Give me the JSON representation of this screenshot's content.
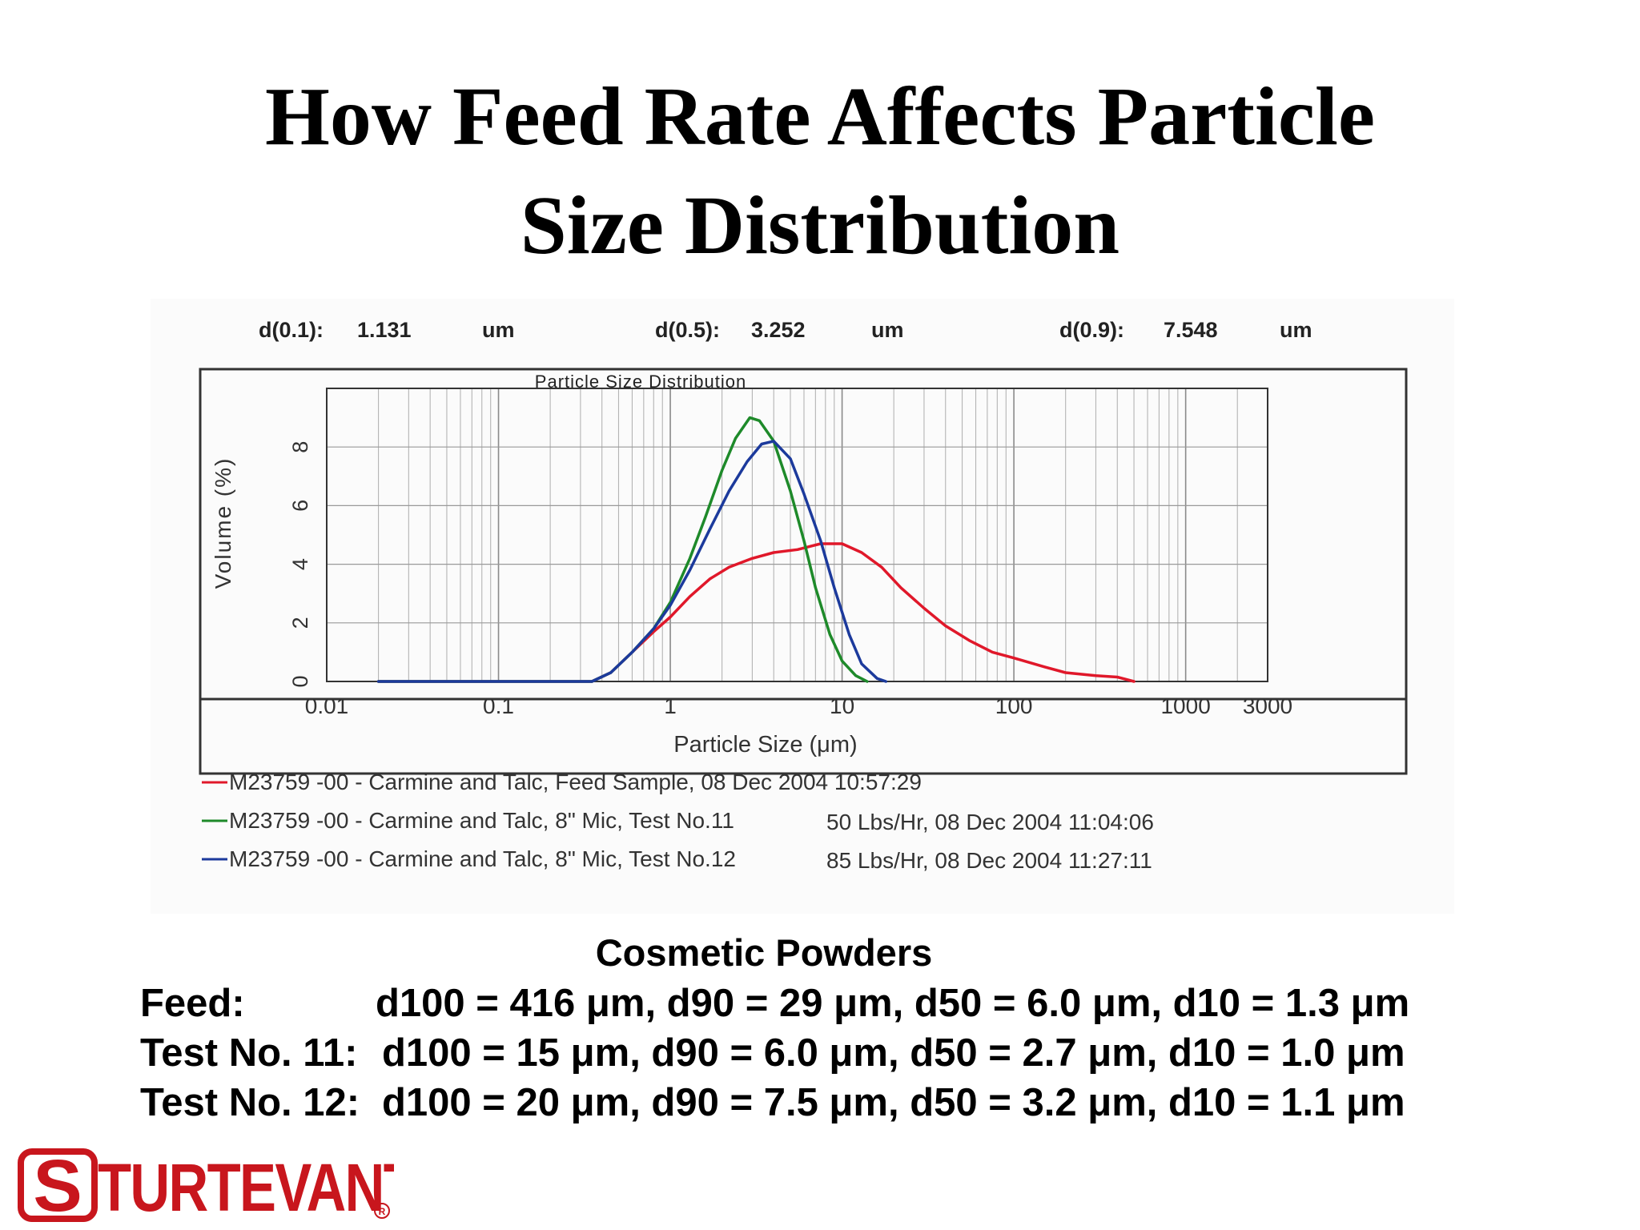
{
  "title_line1": "How Feed Rate Affects Particle",
  "title_line2": "Size Distribution",
  "chart_data": {
    "type": "line",
    "title": "Particle Size Distribution",
    "xlabel": "Particle Size (μm)",
    "ylabel": "Volume (%)",
    "x_scale": "log",
    "xlim": [
      0.01,
      3000
    ],
    "ylim": [
      0,
      10
    ],
    "x_ticks": [
      "0.01",
      "0.1",
      "1",
      "10",
      "100",
      "1000",
      "3000"
    ],
    "y_ticks": [
      "0",
      "2",
      "4",
      "6",
      "8"
    ],
    "grid": true,
    "stats": [
      {
        "label": "d(0.1):",
        "value": "1.131",
        "unit": "um"
      },
      {
        "label": "d(0.5):",
        "value": "3.252",
        "unit": "um"
      },
      {
        "label": "d(0.9):",
        "value": "7.548",
        "unit": "um"
      }
    ],
    "legend_position": "bottom",
    "series": [
      {
        "name": "M23759 -00 - Carmine and Talc, Feed Sample, 08 Dec 2004 10:57:29",
        "color": "#e0182a",
        "points": [
          [
            0.02,
            0
          ],
          [
            0.35,
            0
          ],
          [
            0.45,
            0.3
          ],
          [
            0.6,
            1.0
          ],
          [
            0.8,
            1.7
          ],
          [
            1.0,
            2.2
          ],
          [
            1.3,
            2.9
          ],
          [
            1.7,
            3.5
          ],
          [
            2.2,
            3.9
          ],
          [
            3.0,
            4.2
          ],
          [
            4.0,
            4.4
          ],
          [
            5.5,
            4.5
          ],
          [
            7.5,
            4.7
          ],
          [
            10,
            4.7
          ],
          [
            13,
            4.4
          ],
          [
            17,
            3.9
          ],
          [
            22,
            3.2
          ],
          [
            30,
            2.5
          ],
          [
            40,
            1.9
          ],
          [
            55,
            1.4
          ],
          [
            75,
            1.0
          ],
          [
            100,
            0.8
          ],
          [
            150,
            0.5
          ],
          [
            200,
            0.3
          ],
          [
            300,
            0.2
          ],
          [
            400,
            0.15
          ],
          [
            500,
            0
          ]
        ]
      },
      {
        "name": "M23759 -00 - Carmine and Talc, 8\" Mic, Test No.11",
        "extra": "50 Lbs/Hr, 08 Dec 2004 11:04:06",
        "color": "#1e8a2a",
        "points": [
          [
            0.02,
            0
          ],
          [
            0.35,
            0
          ],
          [
            0.45,
            0.3
          ],
          [
            0.6,
            1.0
          ],
          [
            0.8,
            1.8
          ],
          [
            1.0,
            2.7
          ],
          [
            1.3,
            4.2
          ],
          [
            1.6,
            5.6
          ],
          [
            2.0,
            7.2
          ],
          [
            2.4,
            8.3
          ],
          [
            2.9,
            9.0
          ],
          [
            3.3,
            8.9
          ],
          [
            4.0,
            8.2
          ],
          [
            5.0,
            6.5
          ],
          [
            6.0,
            4.8
          ],
          [
            7.0,
            3.2
          ],
          [
            8.5,
            1.6
          ],
          [
            10,
            0.7
          ],
          [
            12,
            0.2
          ],
          [
            14,
            0
          ]
        ]
      },
      {
        "name": "M23759 -00 - Carmine and Talc, 8\" Mic, Test No.12",
        "extra": "85 Lbs/Hr, 08 Dec 2004 11:27:11",
        "color": "#1c3a9c",
        "points": [
          [
            0.02,
            0
          ],
          [
            0.35,
            0
          ],
          [
            0.45,
            0.3
          ],
          [
            0.6,
            1.0
          ],
          [
            0.8,
            1.8
          ],
          [
            1.0,
            2.6
          ],
          [
            1.3,
            3.8
          ],
          [
            1.7,
            5.2
          ],
          [
            2.2,
            6.5
          ],
          [
            2.8,
            7.5
          ],
          [
            3.4,
            8.1
          ],
          [
            4.0,
            8.2
          ],
          [
            5.0,
            7.6
          ],
          [
            6.0,
            6.4
          ],
          [
            7.5,
            4.8
          ],
          [
            9.0,
            3.2
          ],
          [
            11,
            1.6
          ],
          [
            13,
            0.6
          ],
          [
            16,
            0.1
          ],
          [
            18,
            0
          ]
        ]
      }
    ]
  },
  "caption": "Cosmetic Powders",
  "stats_rows": [
    {
      "label": "Feed:",
      "values": "d100 = 416 μm, d90 = 29 μm,  d50 = 6.0 μm, d10 = 1.3 μm"
    },
    {
      "label": "Test No. 11:",
      "values": "d100 = 15 μm,   d90 = 6.0 μm, d50 = 2.7 μm, d10 = 1.0 μm"
    },
    {
      "label": "Test No. 12:",
      "values": "d100 = 20 μm,   d90 = 7.5 μm, d50 = 3.2 μm, d10 = 1.1 μm"
    }
  ],
  "logo_text": "STURTEVANT",
  "logo_color": "#c8161d"
}
